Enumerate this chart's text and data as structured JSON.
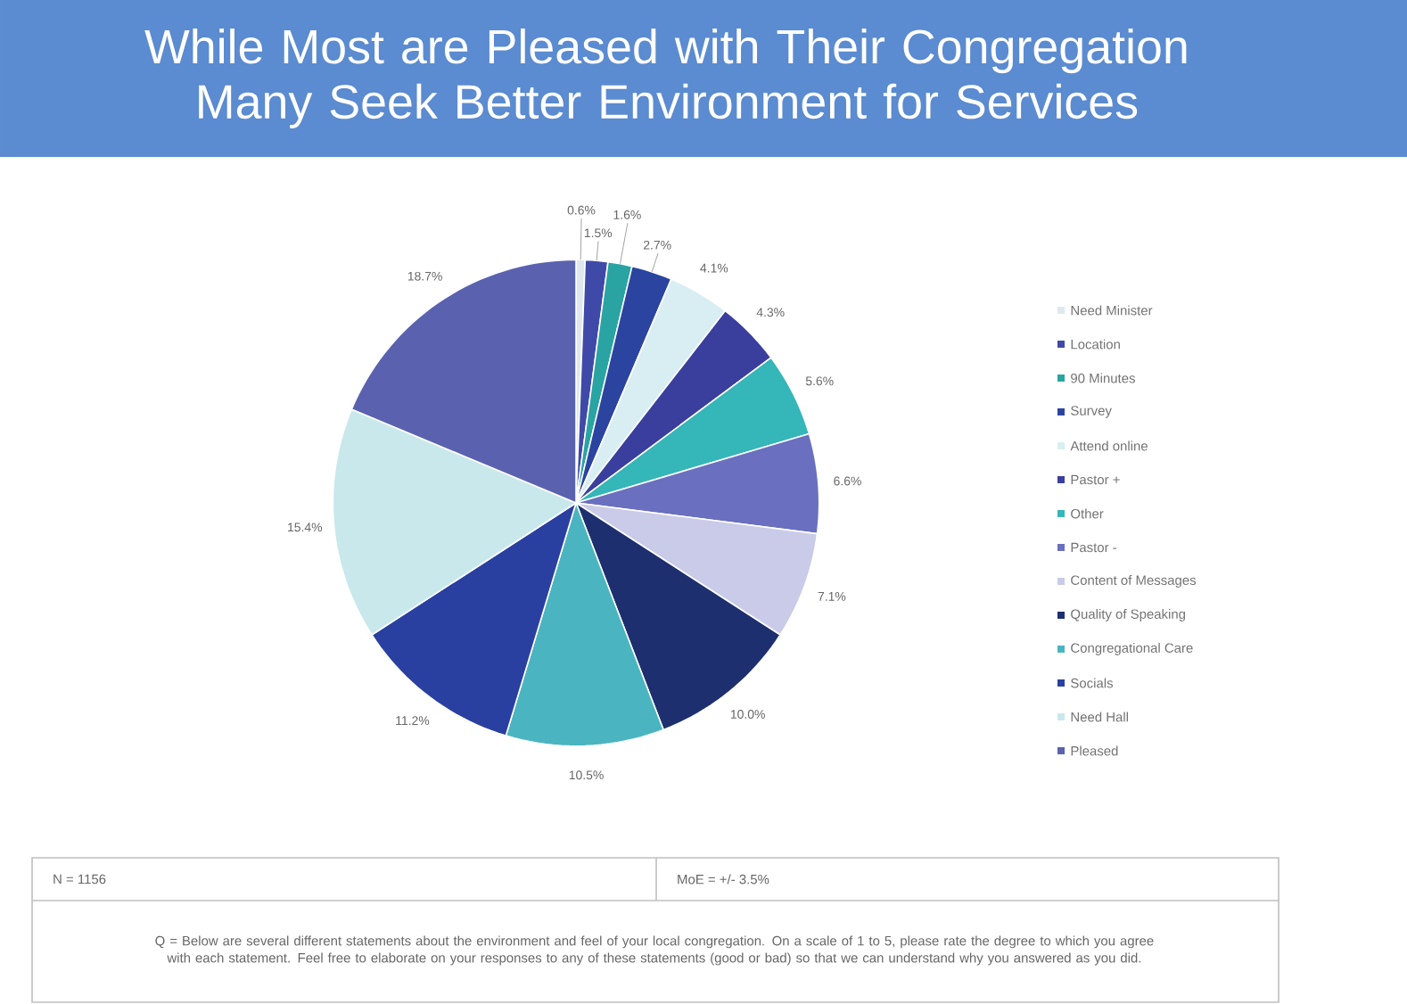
{
  "chart_data": {
    "type": "pie",
    "title": "While Most are Pleased with Their Congregation Many Seek Better Environment for Services",
    "categories": [
      "Need Minister",
      "Location",
      "90 Minutes",
      "Survey",
      "Attend online",
      "Pastor +",
      "Other",
      "Pastor -",
      "Content of Messages",
      "Quality of Speaking",
      "Congregational Care",
      "Socials",
      "Need Hall",
      "Pleased"
    ],
    "values": [
      0.6,
      1.5,
      1.6,
      2.7,
      4.1,
      4.3,
      5.6,
      6.6,
      7.1,
      10.0,
      10.5,
      11.2,
      15.4,
      18.7
    ],
    "value_labels": [
      "0.6%",
      "1.5%",
      "1.6%",
      "2.7%",
      "4.1%",
      "4.3%",
      "5.6%",
      "6.6%",
      "7.1%",
      "10.0%",
      "10.5%",
      "11.2%",
      "15.4%",
      "18.7%"
    ],
    "colors": [
      "#dfe8f0",
      "#3f4aa8",
      "#2aa3a3",
      "#2a44a0",
      "#d9eef2",
      "#3a3f9e",
      "#35b6b8",
      "#6a6fbf",
      "#c9cbe8",
      "#1e2f70",
      "#4ab5c0",
      "#2a40a0",
      "#c8e8ec",
      "#5a62b0"
    ],
    "legend": "right",
    "annotations": [
      "N = 1156",
      "MoE = +/- 3.5%",
      "Q = Below are several different statements about the environment and feel of your local congregation.  On a scale of 1 to 5, please rate the degree to which you agree with each statement. Feel free to elaborate on your responses to any of these statements (good or bad) so that we can understand why you answered as you did."
    ]
  }
}
